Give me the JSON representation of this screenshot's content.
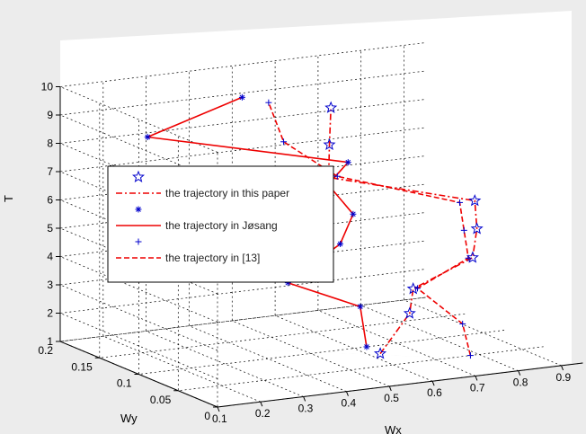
{
  "chart_data": {
    "type": "line3d",
    "xlabel": "Wx",
    "ylabel": "Wy",
    "zlabel": "T",
    "xlim": [
      0.1,
      0.95
    ],
    "ylim": [
      0,
      0.2
    ],
    "zlim": [
      1,
      10
    ],
    "x_ticks": [
      "0.1",
      "0.2",
      "0.3",
      "0.4",
      "0.5",
      "0.6",
      "0.7",
      "0.8",
      "0.9"
    ],
    "y_ticks": [
      "0",
      "0.05",
      "0.1",
      "0.15",
      "0.2"
    ],
    "z_ticks": [
      "1",
      "2",
      "3",
      "4",
      "5",
      "6",
      "7",
      "8",
      "9",
      "10"
    ],
    "grid": true,
    "legend_position": "center-left",
    "legend": [
      "the trajectory in this paper",
      "the trajectory in Jøsang",
      "the trajectory in [13]"
    ],
    "colors": {
      "line": "#ee0000",
      "marker": "#0000cc",
      "background": "#ececec",
      "axes": "#ffffff"
    },
    "series": [
      {
        "name": "the trajectory in this paper",
        "marker": "star",
        "line": "dash-dot",
        "z": [
          1,
          2,
          3,
          4,
          5,
          6,
          7,
          8,
          9
        ],
        "x": [
          0.625,
          0.73,
          0.72,
          0.84,
          0.85,
          0.845,
          0.56,
          0.58,
          0.62
        ],
        "y": [
          0.08,
          0.1,
          0.09,
          0.08,
          0.08,
          0.08,
          0.11,
          0.12,
          0.14
        ]
      },
      {
        "name": "the trajectory in Jøsang",
        "marker": "asterisk",
        "line": "solid",
        "z": [
          1,
          2,
          3,
          4,
          5,
          6,
          7,
          8,
          9
        ],
        "x": [
          0.63,
          0.67,
          0.52,
          0.66,
          0.69,
          0.65,
          0.66,
          0.285,
          0.505
        ],
        "y": [
          0.1,
          0.13,
          0.14,
          0.15,
          0.15,
          0.16,
          0.14,
          0.19,
          0.19
        ]
      },
      {
        "name": "the trajectory in [13]",
        "marker": "plus",
        "line": "dashed",
        "z": [
          1,
          2,
          3,
          4,
          5,
          6,
          7,
          8,
          9
        ],
        "x": [
          0.78,
          0.78,
          0.73,
          0.83,
          0.82,
          0.81,
          0.58,
          0.51,
          0.53
        ],
        "y": [
          0.05,
          0.06,
          0.09,
          0.08,
          0.08,
          0.08,
          0.11,
          0.14,
          0.17
        ]
      }
    ]
  }
}
